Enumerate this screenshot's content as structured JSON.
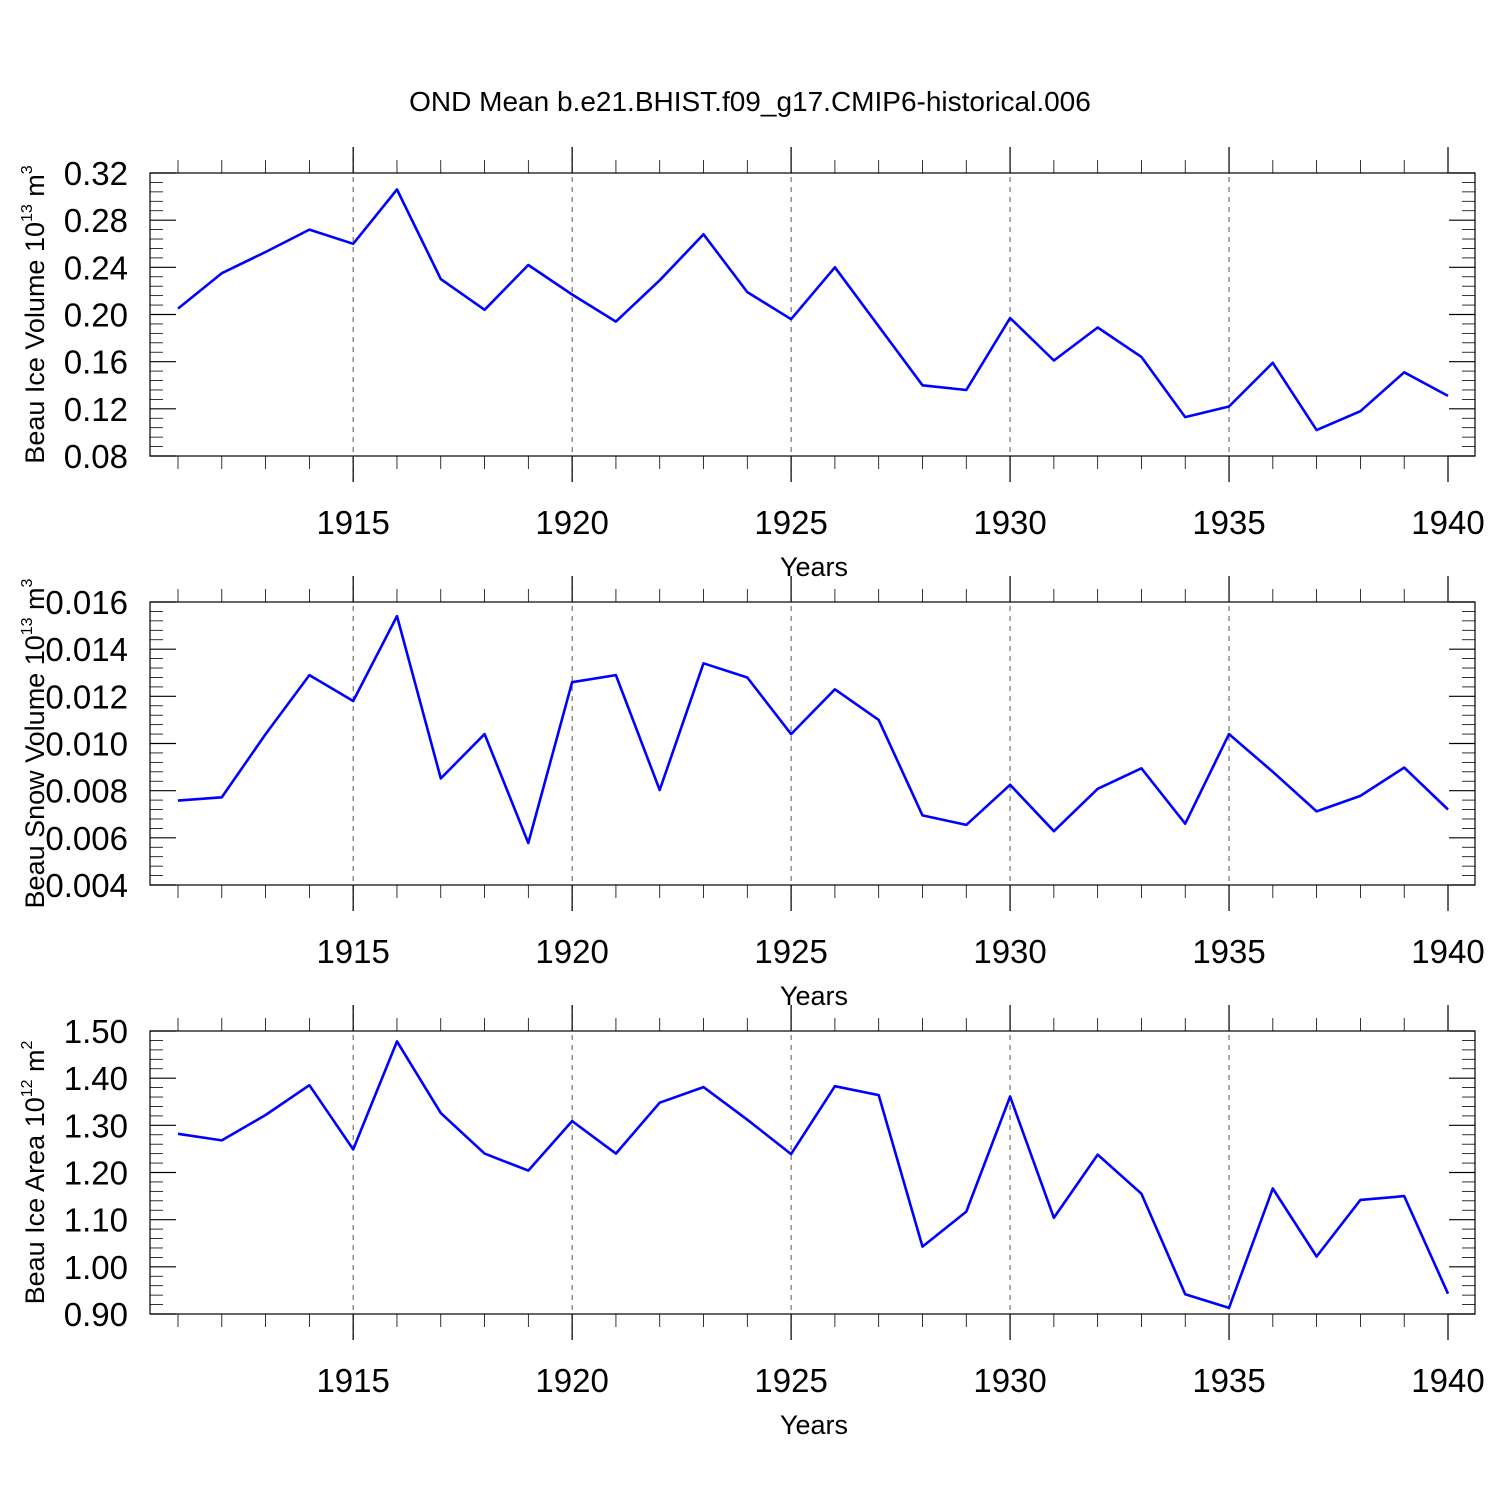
{
  "figure": {
    "title": "OND Mean b.e21.BHIST.f09_g17.CMIP6-historical.006"
  },
  "colors": {
    "series": "#0000ff",
    "frame": "#000000",
    "grid": "#555555"
  },
  "chart_data": [
    {
      "type": "line",
      "title": "",
      "xlabel": "Years",
      "ylabel": {
        "base": "Beau Ice Volume 10",
        "exponent": "13",
        "unit": " m",
        "unit_exponent": "3"
      },
      "xlim": [
        1911,
        1940
      ],
      "ylim": [
        0.08,
        0.32
      ],
      "x_ticks": [
        1915,
        1920,
        1925,
        1930,
        1935,
        1940
      ],
      "x_tick_labels": [
        "1915",
        "1920",
        "1925",
        "1930",
        "1935",
        "1940"
      ],
      "y_ticks": [
        0.08,
        0.12,
        0.16,
        0.2,
        0.24,
        0.28,
        0.32
      ],
      "y_tick_labels": [
        "0.08",
        "0.12",
        "0.16",
        "0.20",
        "0.24",
        "0.28",
        "0.32"
      ],
      "grid": "vertical dashed at major x ticks",
      "x": [
        1911,
        1912,
        1913,
        1914,
        1915,
        1916,
        1917,
        1918,
        1919,
        1920,
        1921,
        1922,
        1923,
        1924,
        1925,
        1926,
        1927,
        1928,
        1929,
        1930,
        1931,
        1932,
        1933,
        1934,
        1935,
        1936,
        1937,
        1938,
        1939,
        1940
      ],
      "series": [
        {
          "values": [
            0.205,
            0.235,
            0.253,
            0.272,
            0.26,
            0.306,
            0.23,
            0.204,
            0.242,
            0.217,
            0.194,
            0.229,
            0.268,
            0.219,
            0.196,
            0.24,
            0.19,
            0.14,
            0.136,
            0.197,
            0.161,
            0.189,
            0.164,
            0.113,
            0.122,
            0.159,
            0.102,
            0.118,
            0.151,
            0.131
          ]
        }
      ]
    },
    {
      "type": "line",
      "title": "",
      "xlabel": "Years",
      "ylabel": {
        "base": "Beau Snow Volume 10",
        "exponent": "13",
        "unit": " m",
        "unit_exponent": "3"
      },
      "xlim": [
        1911,
        1940
      ],
      "ylim": [
        0.004,
        0.016
      ],
      "x_ticks": [
        1915,
        1920,
        1925,
        1930,
        1935,
        1940
      ],
      "x_tick_labels": [
        "1915",
        "1920",
        "1925",
        "1930",
        "1935",
        "1940"
      ],
      "y_ticks": [
        0.004,
        0.006,
        0.008,
        0.01,
        0.012,
        0.014,
        0.016
      ],
      "y_tick_labels": [
        "0.004",
        "0.006",
        "0.008",
        "0.010",
        "0.012",
        "0.014",
        "0.016"
      ],
      "grid": "vertical dashed at major x ticks",
      "x": [
        1911,
        1912,
        1913,
        1914,
        1915,
        1916,
        1917,
        1918,
        1919,
        1920,
        1921,
        1922,
        1923,
        1924,
        1925,
        1926,
        1927,
        1928,
        1929,
        1930,
        1931,
        1932,
        1933,
        1934,
        1935,
        1936,
        1937,
        1938,
        1939,
        1940
      ],
      "series": [
        {
          "values": [
            0.00758,
            0.00772,
            0.0104,
            0.0129,
            0.0118,
            0.0154,
            0.00852,
            0.0104,
            0.00578,
            0.0126,
            0.0129,
            0.00803,
            0.0134,
            0.0128,
            0.0104,
            0.0123,
            0.011,
            0.00695,
            0.00655,
            0.00825,
            0.00628,
            0.00808,
            0.00895,
            0.0066,
            0.0104,
            0.0088,
            0.00712,
            0.00778,
            0.00898,
            0.0072
          ]
        }
      ]
    },
    {
      "type": "line",
      "title": "",
      "xlabel": "Years",
      "ylabel": {
        "base": "Beau Ice Area 10",
        "exponent": "12",
        "unit": " m",
        "unit_exponent": "2"
      },
      "xlim": [
        1911,
        1940
      ],
      "ylim": [
        0.9,
        1.5
      ],
      "x_ticks": [
        1915,
        1920,
        1925,
        1930,
        1935,
        1940
      ],
      "x_tick_labels": [
        "1915",
        "1920",
        "1925",
        "1930",
        "1935",
        "1940"
      ],
      "y_ticks": [
        0.9,
        1.0,
        1.1,
        1.2,
        1.3,
        1.4,
        1.5
      ],
      "y_tick_labels": [
        "0.90",
        "1.00",
        "1.10",
        "1.20",
        "1.30",
        "1.40",
        "1.50"
      ],
      "grid": "vertical dashed at major x ticks",
      "x": [
        1911,
        1912,
        1913,
        1914,
        1915,
        1916,
        1917,
        1918,
        1919,
        1920,
        1921,
        1922,
        1923,
        1924,
        1925,
        1926,
        1927,
        1928,
        1929,
        1930,
        1931,
        1932,
        1933,
        1934,
        1935,
        1936,
        1937,
        1938,
        1939,
        1940
      ],
      "series": [
        {
          "values": [
            1.282,
            1.268,
            1.322,
            1.385,
            1.249,
            1.478,
            1.326,
            1.24,
            1.204,
            1.309,
            1.24,
            1.348,
            1.381,
            1.312,
            1.239,
            1.383,
            1.364,
            1.043,
            1.117,
            1.361,
            1.104,
            1.238,
            1.155,
            0.942,
            0.913,
            1.166,
            1.022,
            1.142,
            1.15,
            0.943
          ]
        }
      ]
    }
  ]
}
